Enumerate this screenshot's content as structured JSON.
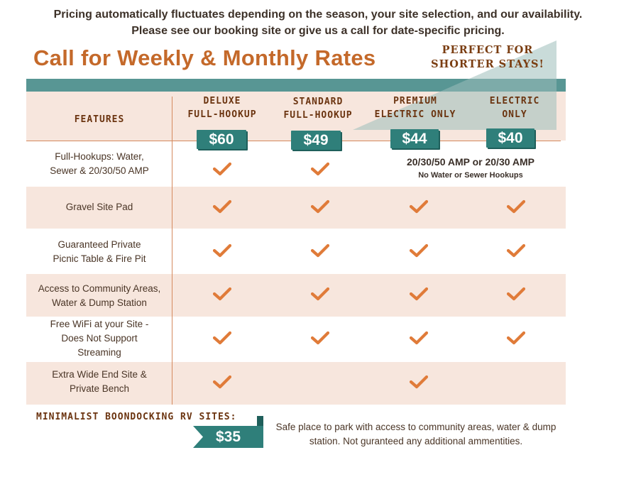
{
  "notice": "Pricing automatically fluctuates depending on the season, your site selection, and our availability. Please see our booking site or give us a call for date-specific pricing.",
  "headline": "Call for Weekly & Monthly Rates",
  "ribbon": {
    "line1": "PERFECT FOR",
    "line2": "SHORTER STAYS!"
  },
  "features_header": "FEATURES",
  "columns": [
    {
      "line1": "DELUXE",
      "line2": "FULL-HOOKUP",
      "price": "$60"
    },
    {
      "line1": "STANDARD",
      "line2": "FULL-HOOKUP",
      "price": "$49"
    },
    {
      "line1": "PREMIUM",
      "line2": "ELECTRIC ONLY",
      "price": "$44"
    },
    {
      "line1": "ELECTRIC",
      "line2": "ONLY",
      "price": "$40"
    }
  ],
  "rows": [
    {
      "label": "Full-Hookups: Water,\nSewer & 20/30/50 AMP",
      "checks": [
        true,
        true,
        false,
        false
      ]
    },
    {
      "label": "Gravel Site Pad",
      "checks": [
        true,
        true,
        true,
        true
      ]
    },
    {
      "label": "Guaranteed Private\nPicnic Table & Fire Pit",
      "checks": [
        true,
        true,
        true,
        true
      ]
    },
    {
      "label": "Access to Community Areas,\nWater & Dump Station",
      "checks": [
        true,
        true,
        true,
        true
      ]
    },
    {
      "label": "Free WiFi at your Site -\nDoes Not Support\nStreaming",
      "checks": [
        true,
        true,
        true,
        true
      ]
    },
    {
      "label": "Extra Wide End Site &\nPrivate Bench",
      "checks": [
        true,
        false,
        true,
        false
      ]
    }
  ],
  "electric_note": {
    "amp": "20/30/50 AMP or 20/30 AMP",
    "sub": "No Water or Sewer Hookups"
  },
  "boondocking": {
    "label": "MINIMALIST BOONDOCKING RV SITES:",
    "price": "$35",
    "description": "Safe place to park with access to community areas, water & dump station. Not guranteed any additional ammentities."
  },
  "colors": {
    "accent": "#c4692a",
    "teal": "#2f7f7a",
    "band": "#f7e6dd",
    "check": "#e07b39"
  }
}
